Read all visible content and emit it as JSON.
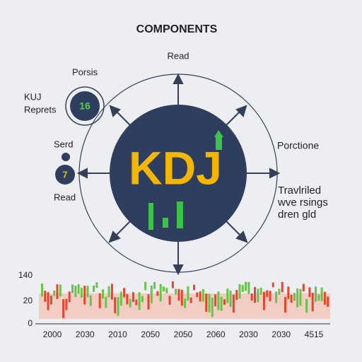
{
  "title": "COMPONENTS",
  "center": {
    "label": "KDJ"
  },
  "labels": {
    "top": "Read",
    "left_top": "Porsis",
    "left_mid": [
      "KUJ",
      "Reprets"
    ],
    "left_badge": "16",
    "left_seed": "Serd",
    "left_badge2": "7",
    "left_bottom": "Read",
    "right": "Porctione",
    "right_text": [
      "Travlriled",
      "wve rsings",
      "dren gld"
    ]
  },
  "strip": {
    "y_labels": [
      "140",
      "20",
      "0"
    ],
    "x_labels": [
      "2000",
      "2030",
      "2010",
      "2050",
      "2050",
      "2060",
      "2030",
      "2030",
      "4515"
    ]
  }
}
